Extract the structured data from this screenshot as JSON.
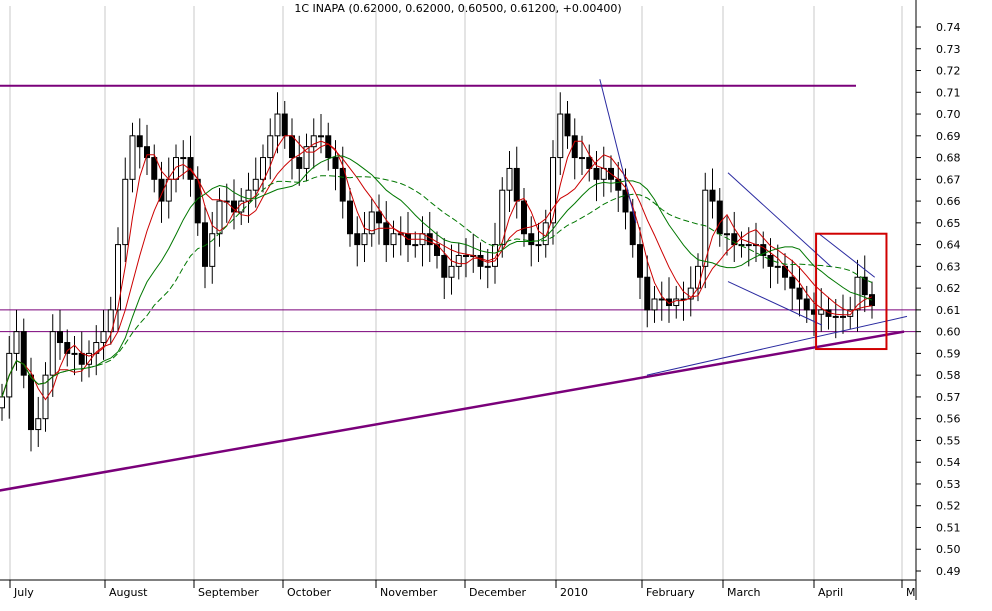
{
  "chart_data": {
    "type": "candlestick",
    "title": "1C INAPA (0.62000, 0.62000, 0.60500, 0.61200, +0.00400)",
    "ylim": [
      0.483,
      0.755
    ],
    "y_ticks": [
      0.49,
      0.5,
      0.51,
      0.52,
      0.53,
      0.54,
      0.55,
      0.56,
      0.57,
      0.58,
      0.59,
      0.6,
      0.61,
      0.62,
      0.63,
      0.64,
      0.65,
      0.66,
      0.67,
      0.68,
      0.69,
      0.7,
      0.71,
      0.72,
      0.73,
      0.74
    ],
    "x_labels": [
      "July",
      "August",
      "September",
      "October",
      "November",
      "December",
      "2010",
      "February",
      "March",
      "April",
      "M"
    ],
    "grid": "vertical month separators",
    "price_path": [
      0.57,
      0.59,
      0.6,
      0.58,
      0.555,
      0.56,
      0.58,
      0.6,
      0.595,
      0.59,
      0.59,
      0.585,
      0.59,
      0.595,
      0.6,
      0.61,
      0.64,
      0.67,
      0.69,
      0.685,
      0.68,
      0.67,
      0.66,
      0.67,
      0.68,
      0.68,
      0.67,
      0.65,
      0.63,
      0.645,
      0.66,
      0.66,
      0.655,
      0.66,
      0.665,
      0.67,
      0.68,
      0.69,
      0.7,
      0.69,
      0.68,
      0.675,
      0.685,
      0.69,
      0.69,
      0.68,
      0.675,
      0.66,
      0.645,
      0.64,
      0.645,
      0.655,
      0.65,
      0.64,
      0.645,
      0.645,
      0.64,
      0.64,
      0.645,
      0.64,
      0.635,
      0.625,
      0.63,
      0.635,
      0.635,
      0.635,
      0.63,
      0.63,
      0.64,
      0.665,
      0.675,
      0.66,
      0.645,
      0.64,
      0.64,
      0.65,
      0.68,
      0.7,
      0.69,
      0.68,
      0.68,
      0.675,
      0.67,
      0.675,
      0.67,
      0.665,
      0.655,
      0.64,
      0.625,
      0.61,
      0.615,
      0.615,
      0.612,
      0.615,
      0.615,
      0.62,
      0.63,
      0.665,
      0.66,
      0.645,
      0.645,
      0.64,
      0.64,
      0.64,
      0.64,
      0.635,
      0.63,
      0.63,
      0.625,
      0.62,
      0.615,
      0.61,
      0.608,
      0.61,
      0.607,
      0.607,
      0.607,
      0.61,
      0.625,
      0.617,
      0.612
    ],
    "moving_averages": [
      {
        "color": "#cc0000",
        "period": 10
      },
      {
        "color": "#cc0000",
        "period": 20
      },
      {
        "color": "#007700",
        "period": 40
      },
      {
        "color": "#007700",
        "period": 60,
        "style": "dashed"
      }
    ],
    "horizontal_lines": [
      {
        "y": 0.713,
        "color": "#7a007a",
        "width": 2
      },
      {
        "y": 0.61,
        "color": "#7a007a",
        "width": 1
      },
      {
        "y": 0.6,
        "color": "#7a007a",
        "width": 1
      }
    ],
    "trend_lines": [
      {
        "from": [
          "2009-06-26",
          0.526
        ],
        "to": [
          "2010-04-30",
          0.6
        ],
        "color": "#7a007a",
        "width": 2.5
      },
      {
        "from": [
          "2010-01-15",
          0.716
        ],
        "to": [
          "2010-01-28",
          0.65
        ],
        "color": "#2a2aa0",
        "width": 1
      },
      {
        "from": [
          "2010-02-01",
          0.58
        ],
        "to": [
          "2010-05-01",
          0.607
        ],
        "color": "#2a2aa0",
        "width": 1
      },
      {
        "from": [
          "2010-03-01",
          0.673
        ],
        "to": [
          "2010-04-05",
          0.63
        ],
        "color": "#2a2aa0",
        "width": 1
      },
      {
        "from": [
          "2010-03-01",
          0.623
        ],
        "to": [
          "2010-04-02",
          0.603
        ],
        "color": "#2a2aa0",
        "width": 1
      },
      {
        "from": [
          "2010-04-01",
          0.645
        ],
        "to": [
          "2010-04-20",
          0.625
        ],
        "color": "#2a2aa0",
        "width": 1
      }
    ],
    "highlight_box": {
      "from": "2010-03-31",
      "to": "2010-04-24",
      "y_top": 0.645,
      "y_bottom": 0.592,
      "color": "#d00000"
    }
  }
}
